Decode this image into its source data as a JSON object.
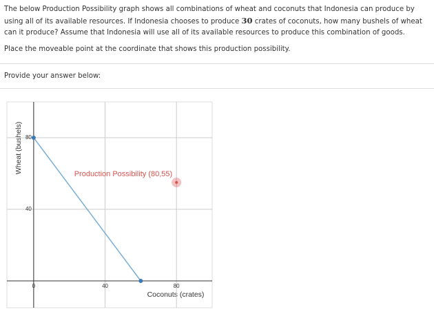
{
  "question": {
    "text_before": "The below Production Possibility graph shows all combinations of wheat and coconuts that Indonesia can produce by using all of its available resources. If Indonesia chooses to produce ",
    "number": "30",
    "text_after": " crates of coconuts, how many bushels of wheat can it produce? Assume that Indonesia will use all of its available resources to produce this combination of goods.",
    "instruction": "Place the moveable point at the coordinate that shows this production possibility."
  },
  "answer_prompt": "Provide your answer below:",
  "chart_data": {
    "type": "line",
    "x_label": "Coconuts (crates)",
    "y_label": "Wheat (bushels)",
    "xlim": [
      -15,
      100
    ],
    "ylim": [
      -15,
      100
    ],
    "xticks": [
      0,
      40,
      80
    ],
    "yticks": [
      40,
      80
    ],
    "grid": true,
    "series": [
      {
        "color": "#7aaed6",
        "x": [
          0,
          60
        ],
        "y": [
          80,
          0
        ]
      }
    ],
    "point": {
      "label": "Production Possibility (80,55)",
      "color": "#d9534f",
      "x": 80,
      "y": 55
    }
  }
}
